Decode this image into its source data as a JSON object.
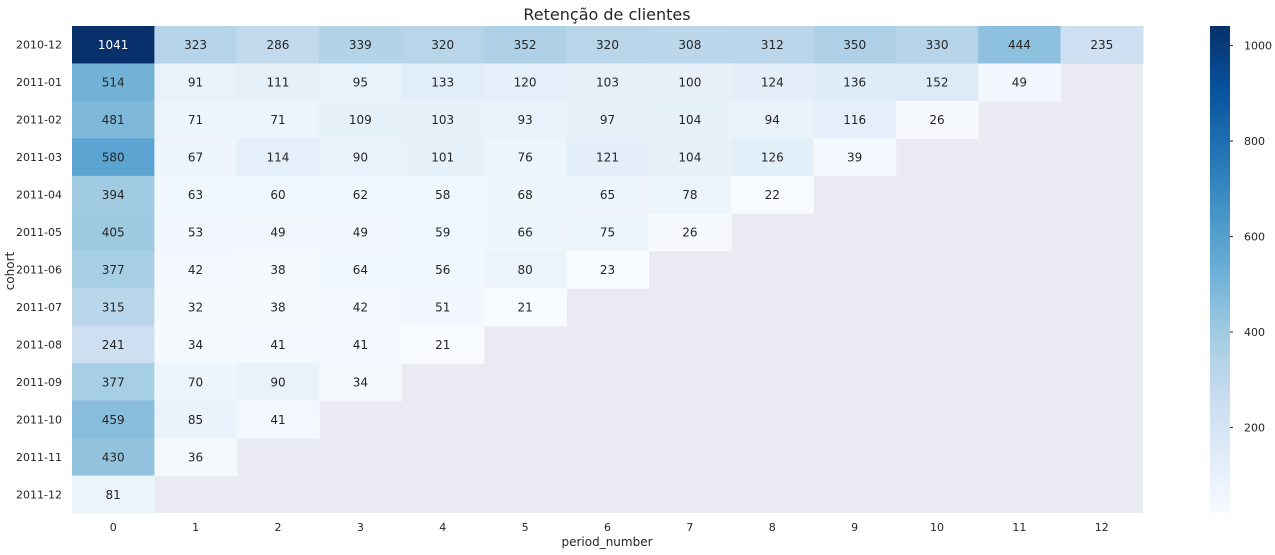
{
  "chart_data": {
    "type": "heatmap",
    "title": "Retenção de clientes",
    "xlabel": "period_number",
    "ylabel": "cohort",
    "x_categories": [
      "0",
      "1",
      "2",
      "3",
      "4",
      "5",
      "6",
      "7",
      "8",
      "9",
      "10",
      "11",
      "12"
    ],
    "y_categories": [
      "2010-12",
      "2011-01",
      "2011-02",
      "2011-03",
      "2011-04",
      "2011-05",
      "2011-06",
      "2011-07",
      "2011-08",
      "2011-09",
      "2011-10",
      "2011-11",
      "2011-12"
    ],
    "values": [
      [
        1041,
        323,
        286,
        339,
        320,
        352,
        320,
        308,
        312,
        350,
        330,
        444,
        235
      ],
      [
        514,
        91,
        111,
        95,
        133,
        120,
        103,
        100,
        124,
        136,
        152,
        49,
        null
      ],
      [
        481,
        71,
        71,
        109,
        103,
        93,
        97,
        104,
        94,
        116,
        26,
        null,
        null
      ],
      [
        580,
        67,
        114,
        90,
        101,
        76,
        121,
        104,
        126,
        39,
        null,
        null,
        null
      ],
      [
        394,
        63,
        60,
        62,
        58,
        68,
        65,
        78,
        22,
        null,
        null,
        null,
        null
      ],
      [
        405,
        53,
        49,
        49,
        59,
        66,
        75,
        26,
        null,
        null,
        null,
        null,
        null
      ],
      [
        377,
        42,
        38,
        64,
        56,
        80,
        23,
        null,
        null,
        null,
        null,
        null,
        null
      ],
      [
        315,
        32,
        38,
        42,
        51,
        21,
        null,
        null,
        null,
        null,
        null,
        null,
        null
      ],
      [
        241,
        34,
        41,
        41,
        21,
        null,
        null,
        null,
        null,
        null,
        null,
        null,
        null
      ],
      [
        377,
        70,
        90,
        34,
        null,
        null,
        null,
        null,
        null,
        null,
        null,
        null,
        null
      ],
      [
        459,
        85,
        41,
        null,
        null,
        null,
        null,
        null,
        null,
        null,
        null,
        null,
        null
      ],
      [
        430,
        36,
        null,
        null,
        null,
        null,
        null,
        null,
        null,
        null,
        null,
        null,
        null
      ],
      [
        81,
        null,
        null,
        null,
        null,
        null,
        null,
        null,
        null,
        null,
        null,
        null,
        null
      ]
    ],
    "value_range": [
      21,
      1041
    ],
    "colormap": "Blues",
    "background_color": "#eaeaf2",
    "colorbar_ticks": [
      200,
      400,
      600,
      800,
      1000
    ],
    "annotations": true,
    "grid": false
  }
}
